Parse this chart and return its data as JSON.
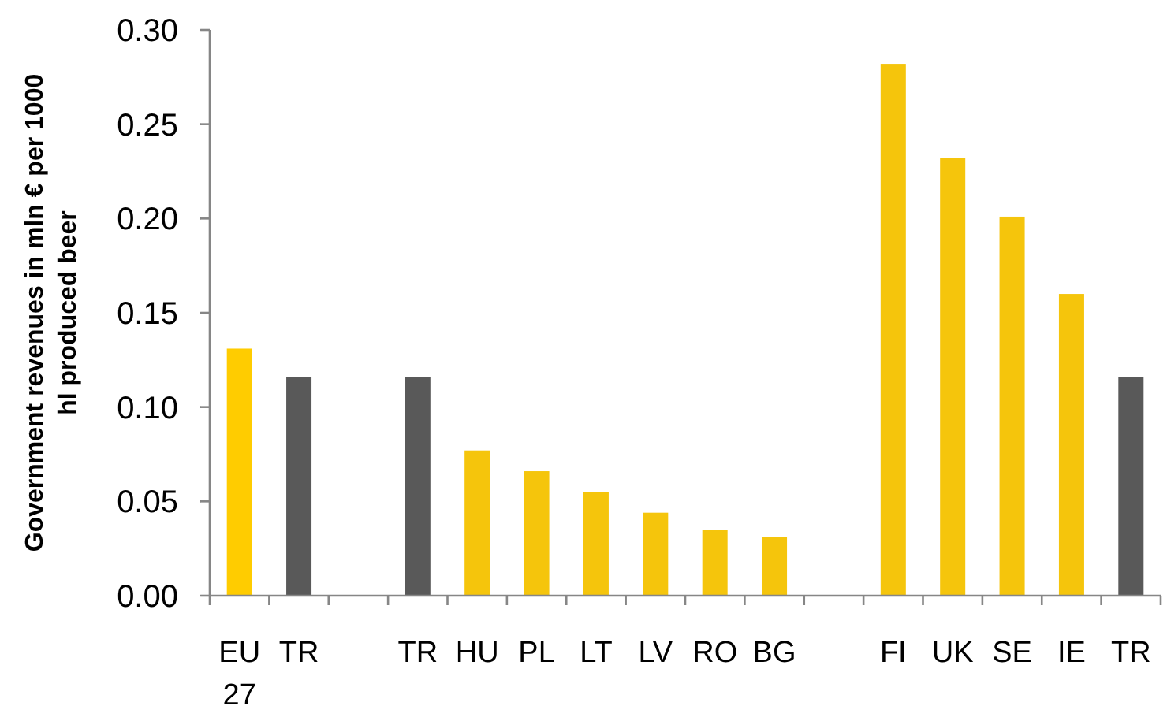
{
  "chart_data": {
    "type": "bar",
    "ylabel": "Government revenues in mln € per 1000 hl produced beer",
    "categories": [
      "EU 27",
      "TR",
      null,
      "TR",
      "HU",
      "PL",
      "LT",
      "LV",
      "RO",
      "BG",
      null,
      "FI",
      "UK",
      "SE",
      "IE",
      "TR"
    ],
    "values": [
      0.131,
      0.116,
      null,
      0.116,
      0.077,
      0.066,
      0.055,
      0.044,
      0.035,
      0.031,
      null,
      0.282,
      0.232,
      0.201,
      0.16,
      0.116
    ],
    "colors": [
      "#ffcc00",
      "#595959",
      null,
      "#595959",
      "#f5c50c",
      "#f5c50c",
      "#f5c50c",
      "#f5c50c",
      "#f5c50c",
      "#f5c50c",
      null,
      "#f5c50c",
      "#f5c50c",
      "#f5c50c",
      "#f5c50c",
      "#595959"
    ],
    "ylim": [
      0,
      0.3
    ],
    "yticks": [
      {
        "value": 0,
        "label": "0.00"
      },
      0.05,
      {
        "value": 0.1,
        "label": "0.10"
      },
      0.15,
      {
        "value": 0.2,
        "label": "0.20"
      },
      0.25,
      {
        "value": 0.3,
        "label": "0.30"
      }
    ]
  }
}
